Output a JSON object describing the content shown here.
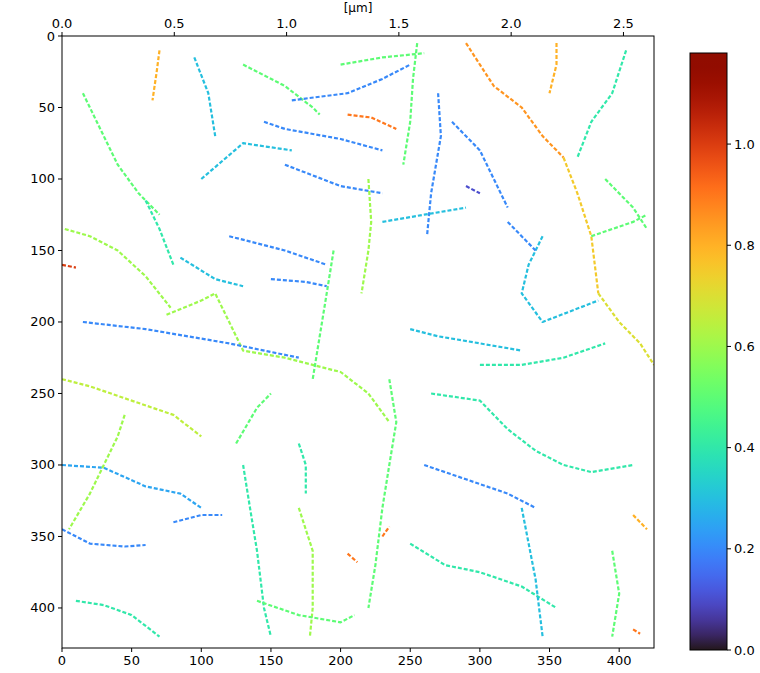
{
  "chart_data": {
    "type": "heatmap",
    "top_axis": {
      "label": "[µm]",
      "lim": [
        0,
        2.636
      ],
      "ticks": [
        {
          "value": 0,
          "label": "0.0"
        },
        0.5,
        {
          "value": 1,
          "label": "1.0"
        },
        1.5,
        {
          "value": 2,
          "label": "2.0"
        },
        2.5
      ]
    },
    "xlim": [
      0,
      425
    ],
    "ylim": [
      0,
      428
    ],
    "xticks": [
      0,
      50,
      100,
      150,
      200,
      250,
      300,
      350,
      400
    ],
    "yticks": [
      0,
      50,
      100,
      150,
      200,
      250,
      300,
      350,
      400
    ],
    "colorbar": {
      "range": [
        0,
        1.18
      ],
      "ticks": [
        {
          "value": 0,
          "label": "0.0"
        },
        0.2,
        0.4,
        0.6,
        0.8,
        {
          "value": 1,
          "label": "1.0"
        }
      ]
    },
    "segments": [
      {
        "points": [
          [
            15,
            40
          ],
          [
            25,
            60
          ],
          [
            40,
            90
          ],
          [
            55,
            110
          ],
          [
            70,
            125
          ]
        ],
        "value": 0.5
      },
      {
        "points": [
          [
            2,
            135
          ],
          [
            20,
            140
          ],
          [
            40,
            150
          ],
          [
            60,
            168
          ],
          [
            78,
            190
          ]
        ],
        "value": 0.6
      },
      {
        "points": [
          [
            70,
            10
          ],
          [
            68,
            25
          ],
          [
            65,
            45
          ]
        ],
        "value": 0.8
      },
      {
        "points": [
          [
            95,
            15
          ],
          [
            105,
            40
          ],
          [
            110,
            70
          ]
        ],
        "value": 0.3
      },
      {
        "points": [
          [
            100,
            100
          ],
          [
            130,
            75
          ],
          [
            165,
            80
          ]
        ],
        "value": 0.3
      },
      {
        "points": [
          [
            130,
            20
          ],
          [
            160,
            35
          ],
          [
            180,
            50
          ],
          [
            185,
            55
          ]
        ],
        "value": 0.5
      },
      {
        "points": [
          [
            145,
            60
          ],
          [
            160,
            65
          ],
          [
            200,
            72
          ],
          [
            230,
            80
          ]
        ],
        "value": 0.2
      },
      {
        "points": [
          [
            160,
            90
          ],
          [
            200,
            105
          ],
          [
            230,
            110
          ]
        ],
        "value": 0.2
      },
      {
        "points": [
          [
            200,
            20
          ],
          [
            230,
            15
          ],
          [
            260,
            12
          ]
        ],
        "value": 0.5
      },
      {
        "points": [
          [
            165,
            45
          ],
          [
            205,
            40
          ],
          [
            230,
            30
          ],
          [
            250,
            20
          ]
        ],
        "value": 0.2
      },
      {
        "points": [
          [
            255,
            5
          ],
          [
            252,
            30
          ],
          [
            250,
            60
          ],
          [
            245,
            90
          ]
        ],
        "value": 0.5
      },
      {
        "points": [
          [
            290,
            5
          ],
          [
            300,
            20
          ],
          [
            310,
            35
          ],
          [
            330,
            50
          ],
          [
            345,
            70
          ],
          [
            360,
            85
          ]
        ],
        "value": 0.85
      },
      {
        "points": [
          [
            360,
            85
          ],
          [
            370,
            110
          ],
          [
            380,
            140
          ],
          [
            385,
            180
          ]
        ],
        "value": 0.75
      },
      {
        "points": [
          [
            355,
            5
          ],
          [
            355,
            20
          ],
          [
            350,
            40
          ]
        ],
        "value": 0.8
      },
      {
        "points": [
          [
            405,
            10
          ],
          [
            395,
            40
          ],
          [
            380,
            60
          ],
          [
            370,
            85
          ]
        ],
        "value": 0.4
      },
      {
        "points": [
          [
            390,
            100
          ],
          [
            410,
            120
          ],
          [
            420,
            135
          ]
        ],
        "value": 0.5
      },
      {
        "points": [
          [
            385,
            180
          ],
          [
            400,
            200
          ],
          [
            415,
            215
          ],
          [
            425,
            230
          ]
        ],
        "value": 0.7
      },
      {
        "points": [
          [
            345,
            140
          ],
          [
            335,
            160
          ],
          [
            330,
            180
          ],
          [
            345,
            200
          ],
          [
            385,
            185
          ]
        ],
        "value": 0.3
      },
      {
        "points": [
          [
            320,
            130
          ],
          [
            340,
            150
          ]
        ],
        "value": 0.2
      },
      {
        "points": [
          [
            280,
            60
          ],
          [
            300,
            80
          ],
          [
            310,
            100
          ],
          [
            320,
            120
          ]
        ],
        "value": 0.2
      },
      {
        "points": [
          [
            270,
            40
          ],
          [
            272,
            70
          ],
          [
            265,
            110
          ],
          [
            262,
            140
          ]
        ],
        "value": 0.2
      },
      {
        "points": [
          [
            220,
            100
          ],
          [
            222,
            130
          ],
          [
            220,
            150
          ],
          [
            215,
            180
          ]
        ],
        "value": 0.6
      },
      {
        "points": [
          [
            205,
            55
          ],
          [
            222,
            57
          ],
          [
            240,
            65
          ]
        ],
        "value": 0.9
      },
      {
        "points": [
          [
            0,
            160
          ],
          [
            10,
            162
          ]
        ],
        "value": 1.0
      },
      {
        "points": [
          [
            75,
            195
          ],
          [
            100,
            185
          ],
          [
            110,
            180
          ],
          [
            120,
            200
          ],
          [
            130,
            220
          ],
          [
            160,
            225
          ],
          [
            200,
            235
          ],
          [
            220,
            250
          ],
          [
            235,
            270
          ]
        ],
        "value": 0.6
      },
      {
        "points": [
          [
            15,
            200
          ],
          [
            60,
            205
          ],
          [
            120,
            215
          ],
          [
            170,
            225
          ]
        ],
        "value": 0.2
      },
      {
        "points": [
          [
            85,
            155
          ],
          [
            110,
            170
          ],
          [
            130,
            175
          ]
        ],
        "value": 0.3
      },
      {
        "points": [
          [
            120,
            140
          ],
          [
            160,
            150
          ],
          [
            190,
            160
          ]
        ],
        "value": 0.2
      },
      {
        "points": [
          [
            195,
            150
          ],
          [
            190,
            180
          ],
          [
            185,
            210
          ],
          [
            180,
            240
          ]
        ],
        "value": 0.5
      },
      {
        "points": [
          [
            235,
            240
          ],
          [
            240,
            270
          ],
          [
            235,
            300
          ],
          [
            230,
            330
          ],
          [
            225,
            370
          ],
          [
            220,
            400
          ]
        ],
        "value": 0.5
      },
      {
        "points": [
          [
            230,
            350
          ],
          [
            235,
            343
          ]
        ],
        "value": 0.9
      },
      {
        "points": [
          [
            0,
            240
          ],
          [
            20,
            245
          ],
          [
            50,
            255
          ],
          [
            80,
            265
          ],
          [
            100,
            280
          ]
        ],
        "value": 0.65
      },
      {
        "points": [
          [
            0,
            300
          ],
          [
            30,
            302
          ],
          [
            60,
            315
          ],
          [
            85,
            320
          ],
          [
            100,
            330
          ]
        ],
        "value": 0.25
      },
      {
        "points": [
          [
            45,
            265
          ],
          [
            40,
            280
          ],
          [
            30,
            300
          ],
          [
            20,
            320
          ],
          [
            5,
            345
          ]
        ],
        "value": 0.6
      },
      {
        "points": [
          [
            125,
            285
          ],
          [
            140,
            260
          ],
          [
            150,
            250
          ]
        ],
        "value": 0.5
      },
      {
        "points": [
          [
            130,
            300
          ],
          [
            135,
            330
          ],
          [
            140,
            360
          ],
          [
            145,
            400
          ],
          [
            150,
            420
          ]
        ],
        "value": 0.4
      },
      {
        "points": [
          [
            0,
            345
          ],
          [
            20,
            355
          ],
          [
            45,
            357
          ],
          [
            60,
            356
          ]
        ],
        "value": 0.2
      },
      {
        "points": [
          [
            80,
            340
          ],
          [
            100,
            335
          ],
          [
            115,
            335
          ]
        ],
        "value": 0.2
      },
      {
        "points": [
          [
            170,
            330
          ],
          [
            180,
            360
          ],
          [
            180,
            400
          ],
          [
            178,
            420
          ]
        ],
        "value": 0.6
      },
      {
        "points": [
          [
            140,
            395
          ],
          [
            170,
            405
          ],
          [
            200,
            410
          ],
          [
            210,
            405
          ]
        ],
        "value": 0.5
      },
      {
        "points": [
          [
            205,
            362
          ],
          [
            212,
            368
          ]
        ],
        "value": 0.9
      },
      {
        "points": [
          [
            250,
            355
          ],
          [
            275,
            370
          ],
          [
            300,
            375
          ],
          [
            330,
            385
          ],
          [
            355,
            400
          ]
        ],
        "value": 0.4
      },
      {
        "points": [
          [
            260,
            300
          ],
          [
            290,
            310
          ],
          [
            320,
            320
          ],
          [
            340,
            330
          ]
        ],
        "value": 0.2
      },
      {
        "points": [
          [
            265,
            250
          ],
          [
            300,
            255
          ],
          [
            320,
            275
          ],
          [
            340,
            290
          ],
          [
            360,
            300
          ],
          [
            380,
            305
          ],
          [
            410,
            300
          ]
        ],
        "value": 0.4
      },
      {
        "points": [
          [
            330,
            330
          ],
          [
            340,
            380
          ],
          [
            345,
            420
          ]
        ],
        "value": 0.3
      },
      {
        "points": [
          [
            250,
            205
          ],
          [
            270,
            210
          ],
          [
            300,
            215
          ],
          [
            330,
            220
          ]
        ],
        "value": 0.3
      },
      {
        "points": [
          [
            300,
            230
          ],
          [
            330,
            230
          ],
          [
            360,
            225
          ],
          [
            390,
            215
          ]
        ],
        "value": 0.4
      },
      {
        "points": [
          [
            410,
            335
          ],
          [
            420,
            345
          ]
        ],
        "value": 0.8
      },
      {
        "points": [
          [
            395,
            360
          ],
          [
            400,
            390
          ],
          [
            395,
            420
          ]
        ],
        "value": 0.5
      },
      {
        "points": [
          [
            10,
            395
          ],
          [
            30,
            398
          ],
          [
            50,
            405
          ],
          [
            70,
            420
          ]
        ],
        "value": 0.4
      },
      {
        "points": [
          [
            170,
            285
          ],
          [
            175,
            300
          ],
          [
            175,
            320
          ]
        ],
        "value": 0.4
      },
      {
        "points": [
          [
            290,
            105
          ],
          [
            300,
            110
          ]
        ],
        "value": 0.1
      },
      {
        "points": [
          [
            380,
            140
          ],
          [
            410,
            130
          ],
          [
            420,
            125
          ]
        ],
        "value": 0.5
      },
      {
        "points": [
          [
            60,
            115
          ],
          [
            70,
            135
          ],
          [
            80,
            160
          ]
        ],
        "value": 0.4
      },
      {
        "points": [
          [
            230,
            130
          ],
          [
            260,
            125
          ],
          [
            290,
            120
          ]
        ],
        "value": 0.3
      },
      {
        "points": [
          [
            150,
            170
          ],
          [
            175,
            172
          ],
          [
            190,
            175
          ]
        ],
        "value": 0.2
      },
      {
        "points": [
          [
            410,
            415
          ],
          [
            415,
            418
          ]
        ],
        "value": 0.9
      }
    ]
  }
}
